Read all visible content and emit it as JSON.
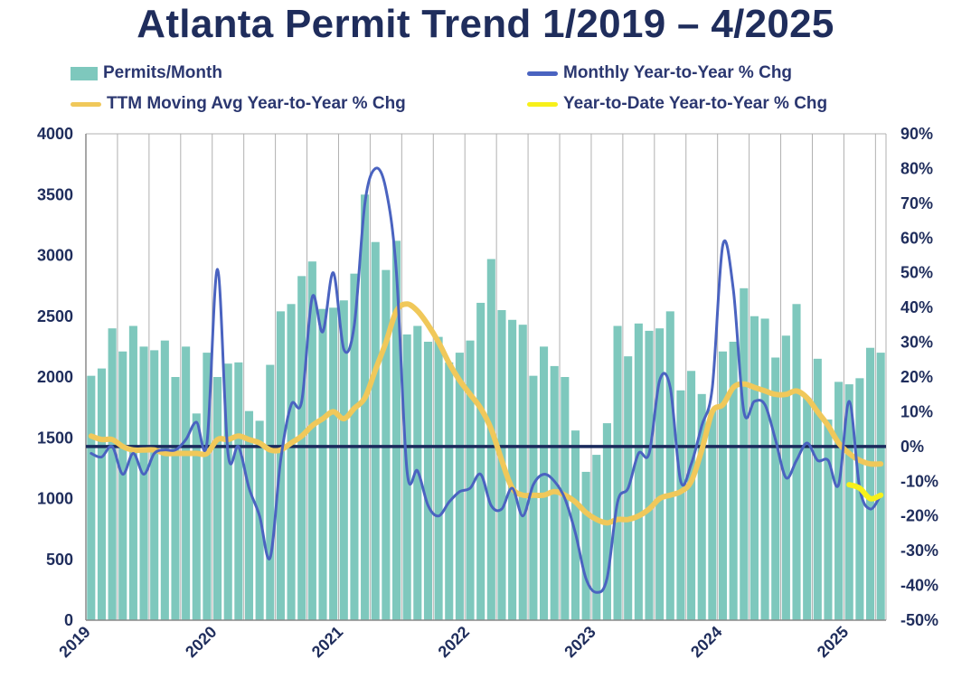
{
  "title": "Atlanta Permit Trend 1/2019 – 4/2025",
  "legend": [
    {
      "label": "Permits/Month",
      "kind": "bar",
      "color": "#7ec8bd"
    },
    {
      "label": "Monthly Year-to-Year % Chg",
      "kind": "line",
      "color": "#4a63c0"
    },
    {
      "label": "TTM Moving Avg Year-to-Year % Chg",
      "kind": "line",
      "color": "#f0c85a"
    },
    {
      "label": "Year-to-Date Year-to-Year % Chg",
      "kind": "line",
      "color": "#f7f01a"
    }
  ],
  "chart_data": {
    "type": "bar",
    "title": "Atlanta Permit Trend 1/2019 – 4/2025",
    "x_start": "2019-01",
    "x_tick_labels": [
      "2019",
      "2020",
      "2021",
      "2022",
      "2023",
      "2024",
      "2025"
    ],
    "left_axis": {
      "ylim": [
        0,
        4000
      ],
      "ticks": [
        "0",
        "500",
        "1000",
        "1500",
        "2000",
        "2500",
        "3000",
        "3500",
        "4000"
      ]
    },
    "right_axis": {
      "ylim": [
        -50,
        90
      ],
      "ticks": [
        "-50%",
        "-40%",
        "-30%",
        "-20%",
        "-10%",
        "0%",
        "10%",
        "20%",
        "30%",
        "40%",
        "50%",
        "60%",
        "70%",
        "80%",
        "90%"
      ]
    },
    "grid": "vertical",
    "series": [
      {
        "name": "Permits/Month",
        "type": "bar",
        "axis": "left",
        "color": "#7ec8bd",
        "values": [
          2010,
          2070,
          2400,
          2210,
          2420,
          2250,
          2220,
          2300,
          2000,
          2250,
          1700,
          2200,
          2000,
          2110,
          2120,
          1720,
          1640,
          2100,
          2540,
          2600,
          2830,
          2950,
          2560,
          2570,
          2630,
          2850,
          3500,
          3110,
          2880,
          3120,
          2350,
          2420,
          2290,
          2330,
          2120,
          2200,
          2300,
          2610,
          2970,
          2550,
          2470,
          2430,
          2010,
          2250,
          2090,
          2000,
          1560,
          1220,
          1360,
          1620,
          2420,
          2170,
          2440,
          2380,
          2400,
          2540,
          1890,
          2050,
          1860,
          1730,
          2210,
          2290,
          2730,
          2500,
          2480,
          2160,
          2340,
          2600,
          1830,
          2150,
          1650,
          1960,
          1940,
          1990,
          2240,
          2200
        ]
      },
      {
        "name": "Monthly Year-to-Year % Chg",
        "type": "line",
        "axis": "right",
        "color": "#4a63c0",
        "values": [
          -2,
          -3,
          0,
          -8,
          -2,
          -8,
          -2,
          -1,
          -1,
          2,
          7,
          1,
          51,
          -2,
          0,
          -12,
          -20,
          -32,
          -4,
          12,
          13,
          43,
          33,
          50,
          28,
          35,
          70,
          80,
          74,
          50,
          -7,
          -7,
          -17,
          -20,
          -16,
          -13,
          -12,
          -8,
          -17,
          -18,
          -12,
          -20,
          -11,
          -8,
          -10,
          -15,
          -25,
          -38,
          -42,
          -38,
          -16,
          -12,
          -2,
          -2,
          19,
          17,
          -10,
          -5,
          6,
          17,
          58,
          45,
          10,
          13,
          12,
          2,
          -9,
          -4,
          1,
          -4,
          -4,
          -11,
          13,
          -12,
          -18,
          -14
        ]
      },
      {
        "name": "TTM Moving Avg Year-to-Year % Chg",
        "type": "line",
        "axis": "right",
        "color": "#f0c85a",
        "values": [
          3,
          2,
          2,
          0,
          -1,
          -1,
          -1,
          -2,
          -2,
          -2,
          -2,
          -2,
          2,
          2,
          3,
          2,
          1,
          -1,
          -1,
          1,
          3,
          6,
          8,
          10,
          8,
          11,
          14,
          22,
          30,
          39,
          41,
          39,
          35,
          30,
          24,
          19,
          15,
          11,
          5,
          -4,
          -12,
          -14,
          -14,
          -14,
          -13,
          -14,
          -16,
          -19,
          -21,
          -22,
          -21,
          -21,
          -20,
          -18,
          -15,
          -14,
          -13,
          -10,
          -1,
          10,
          12,
          17,
          18,
          17,
          16,
          15,
          15,
          16,
          14,
          10,
          6,
          1,
          -2,
          -4,
          -5,
          -5
        ]
      },
      {
        "name": "Year-to-Date Year-to-Year % Chg",
        "type": "line",
        "axis": "right",
        "color": "#f7f01a",
        "x_start": "2025-01",
        "values": [
          -11,
          -12,
          -15,
          -14
        ]
      }
    ]
  }
}
